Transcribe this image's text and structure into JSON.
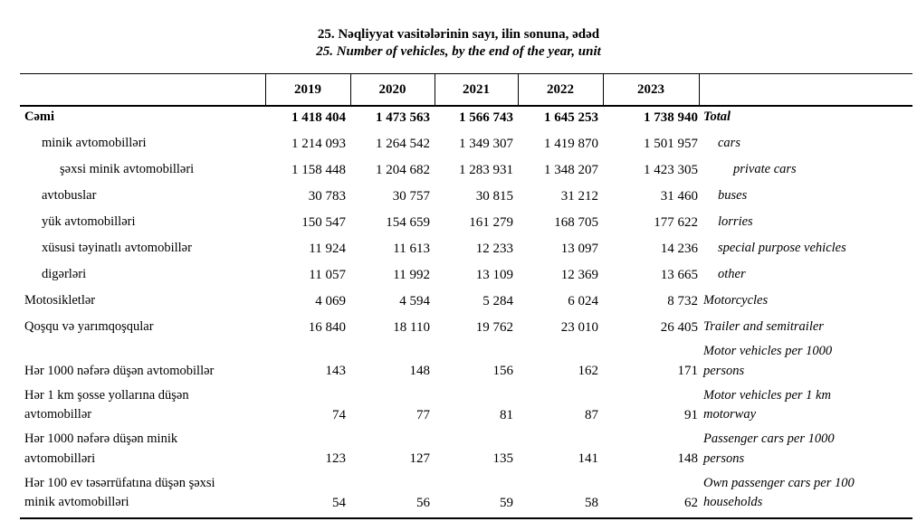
{
  "titles": {
    "az": "25. Nəqliyyat vasitələrinin sayı, ilin sonuna, ədəd",
    "en": "25. Number of vehicles, by the end of the year, unit"
  },
  "table": {
    "year_headers": [
      "2019",
      "2020",
      "2021",
      "2022",
      "2023"
    ],
    "rows": [
      {
        "label_az": "Cəmi",
        "label_en": "Total",
        "values": [
          "1 418 404",
          "1 473 563",
          "1 566 743",
          "1 645 253",
          "1 738 940"
        ]
      },
      {
        "label_az": "minik avtomobilləri",
        "label_en": "cars",
        "values": [
          "1 214 093",
          "1 264 542",
          "1 349 307",
          "1 419 870",
          "1 501 957"
        ]
      },
      {
        "label_az": "şəxsi minik avtomobilləri",
        "label_en": "private cars",
        "values": [
          "1 158 448",
          "1 204 682",
          "1 283 931",
          "1 348 207",
          "1 423 305"
        ]
      },
      {
        "label_az": "avtobuslar",
        "label_en": "buses",
        "values": [
          "30 783",
          "30 757",
          "30 815",
          "31 212",
          "31 460"
        ]
      },
      {
        "label_az": "yük avtomobilləri",
        "label_en": "lorries",
        "values": [
          "150 547",
          "154 659",
          "161 279",
          "168 705",
          "177 622"
        ]
      },
      {
        "label_az": "xüsusi təyinatlı avtomobillər",
        "label_en": "special purpose vehicles",
        "values": [
          "11 924",
          "11 613",
          "12 233",
          "13 097",
          "14 236"
        ]
      },
      {
        "label_az": "digərləri",
        "label_en": "other",
        "values": [
          "11 057",
          "11 992",
          "13 109",
          "12 369",
          "13 665"
        ]
      },
      {
        "label_az": "Motosikletlər",
        "label_en": "Motorcycles",
        "values": [
          "4 069",
          "4 594",
          "5 284",
          "6 024",
          "8 732"
        ]
      },
      {
        "label_az": "Qoşqu və yarımqoşqular",
        "label_en": "Trailer and semitrailer",
        "values": [
          "16 840",
          "18 110",
          "19 762",
          "23 010",
          "26 405"
        ]
      },
      {
        "label_az": "Hər 1000 nəfərə düşən avtomobillər",
        "label_en": "Motor vehicles per 1000\npersons",
        "values": [
          "143",
          "148",
          "156",
          "162",
          "171"
        ]
      },
      {
        "label_az": "Hər 1 km şosse yollarına düşən\navtomobillər",
        "label_en": "Motor vehicles per 1 km\nmotorway",
        "values": [
          "74",
          "77",
          "81",
          "87",
          "91"
        ]
      },
      {
        "label_az": "Hər 1000 nəfərə düşən minik\navtomobilləri",
        "label_en": "Passenger cars per 1000\npersons",
        "values": [
          "123",
          "127",
          "135",
          "141",
          "148"
        ]
      },
      {
        "label_az": "Hər 100 ev təsərrüfatına düşən şəxsi\nminik avtomobilləri",
        "label_en": "Own passenger cars per 100\nhouseholds",
        "values": [
          "54",
          "56",
          "59",
          "58",
          "62"
        ]
      }
    ]
  }
}
